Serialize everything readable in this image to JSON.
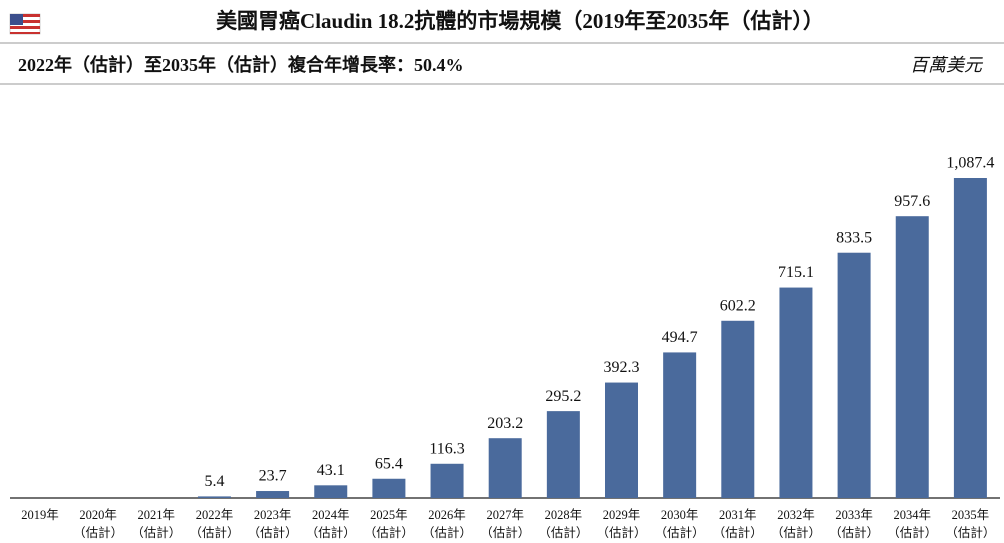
{
  "chart_data": {
    "type": "bar",
    "title": "美國胃癌Claudin 18.2抗體的市場規模（2019年至2035年（估計））",
    "subtitle": "2022年（估計）至2035年（估計）複合年增長率：50.4%",
    "unit": "百萬美元",
    "categories": [
      [
        "2019年"
      ],
      [
        "2020年",
        "（估計）"
      ],
      [
        "2021年",
        "（估計）"
      ],
      [
        "2022年",
        "（估計）"
      ],
      [
        "2023年",
        "（估計）"
      ],
      [
        "2024年",
        "（估計）"
      ],
      [
        "2025年",
        "（估計）"
      ],
      [
        "2026年",
        "（估計）"
      ],
      [
        "2027年",
        "（估計）"
      ],
      [
        "2028年",
        "（估計）"
      ],
      [
        "2029年",
        "（估計）"
      ],
      [
        "2030年",
        "（估計）"
      ],
      [
        "2031年",
        "（估計）"
      ],
      [
        "2032年",
        "（估計）"
      ],
      [
        "2033年",
        "（估計）"
      ],
      [
        "2034年",
        "（估計）"
      ],
      [
        "2035年",
        "（估計）"
      ]
    ],
    "values": [
      null,
      null,
      null,
      5.4,
      23.7,
      43.1,
      65.4,
      116.3,
      203.2,
      295.2,
      392.3,
      494.7,
      602.2,
      715.1,
      833.5,
      957.6,
      1087.4
    ],
    "value_labels": [
      null,
      null,
      null,
      "5.4",
      "23.7",
      "43.1",
      "65.4",
      "116.3",
      "203.2",
      "295.2",
      "392.3",
      "494.7",
      "602.2",
      "715.1",
      "833.5",
      "957.6",
      "1,087.4"
    ],
    "color": "#4a6a9c"
  }
}
